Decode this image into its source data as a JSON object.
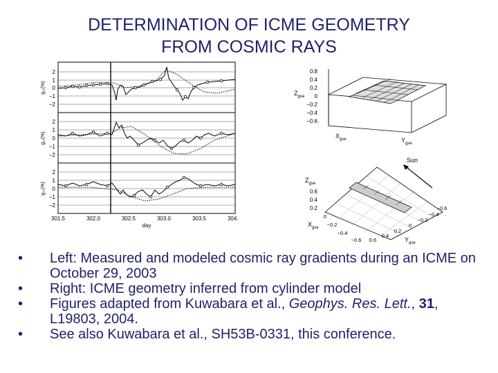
{
  "slide": {
    "title_line1": "DETERMINATION OF ICME GEOMETRY",
    "title_line2": "FROM COSMIC RAYS"
  },
  "left_figure": {
    "panels": [
      {
        "ylabel": "g₁₁(%)",
        "yticks": [
          "2",
          "1",
          "0",
          "−1",
          "−2"
        ]
      },
      {
        "ylabel": "g₁₁(%)",
        "yticks": [
          "2",
          "1",
          "0",
          "−1",
          "−2"
        ]
      },
      {
        "ylabel": "g₁₀(%)",
        "yticks": [
          "2",
          "1",
          "0",
          "−1",
          "−2"
        ]
      }
    ],
    "xticks": [
      "301.5",
      "302.0",
      "302.5",
      "303.0",
      "303.5",
      "304.0"
    ],
    "xlabel": "day"
  },
  "right_figure": {
    "top": {
      "zticks": [
        "0.8",
        "0.4",
        "0.2",
        "0",
        "−0.2",
        "−0.4",
        "−0.6"
      ],
      "z_label": "Z",
      "z_sub": "gse",
      "x_label": "X",
      "x_sub": "gse",
      "y_label": "Y",
      "y_sub": "gse"
    },
    "bottom": {
      "sun_label": "Sun",
      "z_label": "Z",
      "z_sub": "gse",
      "zticks": [
        "0.6",
        "0.4",
        "0.2"
      ],
      "x_label": "X",
      "x_sub": "gse",
      "xticks": [
        "0",
        "−0.2",
        "−0.4",
        "−0.6"
      ],
      "y_label": "Y",
      "y_sub": "gse",
      "yticks_a": [
        "0.6",
        "0.4",
        "0.2",
        "0",
        "−0.2",
        "−0.4",
        "−0.6"
      ]
    }
  },
  "bullets": {
    "b1": "Left: Measured and modeled cosmic ray gradients during an ICME on October 29, 2003",
    "b2": "Right: ICME geometry inferred from cylinder model",
    "b3_pre": "Figures adapted from Kuwabara et al., ",
    "b3_journal": "Geophys. Res. Lett.",
    "b3_mid": ", ",
    "b3_vol": "31",
    "b3_post": ", L19803, 2004.",
    "b4": "See also Kuwabara et al., SH53B-0331, this conference.",
    "bullet_char": "•"
  }
}
